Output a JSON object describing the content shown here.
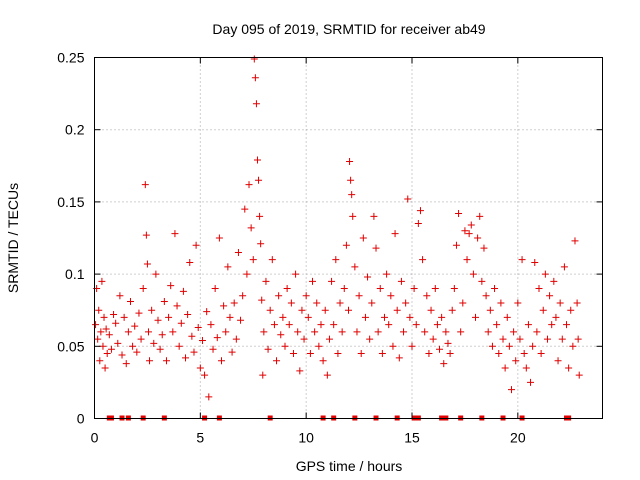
{
  "chart_data": {
    "type": "scatter",
    "title": "Day 095 of 2019, SRMTID for receiver ab49",
    "xlabel": "GPS time / hours",
    "ylabel": "SRMTID / TECUs",
    "xlim": [
      0,
      24
    ],
    "ylim": [
      0,
      0.25
    ],
    "xticks": [
      0,
      5,
      10,
      15,
      20
    ],
    "xtick_labels": [
      "0",
      "5",
      "10",
      "15",
      "20"
    ],
    "yticks": [
      0,
      0.05,
      0.1,
      0.15,
      0.2,
      0.25
    ],
    "ytick_labels": [
      "0",
      "0.05",
      "0.1",
      "0.15",
      "0.2",
      "0.25"
    ],
    "grid": true,
    "marker": "plus",
    "color": "#e00000",
    "series": [
      {
        "name": "SRMTID",
        "points": [
          [
            0.05,
            0.065
          ],
          [
            0.1,
            0.09
          ],
          [
            0.15,
            0.055
          ],
          [
            0.2,
            0.075
          ],
          [
            0.25,
            0.04
          ],
          [
            0.3,
            0.06
          ],
          [
            0.35,
            0.095
          ],
          [
            0.4,
            0.05
          ],
          [
            0.45,
            0.07
          ],
          [
            0.5,
            0.035
          ],
          [
            0.55,
            0.062
          ],
          [
            0.6,
            0.045
          ],
          [
            0.7,
            0.058
          ],
          [
            0.8,
            0.048
          ],
          [
            0.9,
            0.072
          ],
          [
            1.0,
            0.066
          ],
          [
            1.1,
            0.052
          ],
          [
            1.2,
            0.085
          ],
          [
            1.3,
            0.044
          ],
          [
            1.4,
            0.07
          ],
          [
            1.5,
            0.038
          ],
          [
            1.6,
            0.06
          ],
          [
            1.7,
            0.081
          ],
          [
            1.8,
            0.05
          ],
          [
            1.9,
            0.064
          ],
          [
            2.0,
            0.046
          ],
          [
            2.1,
            0.073
          ],
          [
            2.2,
            0.055
          ],
          [
            2.3,
            0.09
          ],
          [
            2.4,
            0.162
          ],
          [
            2.45,
            0.127
          ],
          [
            2.5,
            0.107
          ],
          [
            2.55,
            0.06
          ],
          [
            2.6,
            0.04
          ],
          [
            2.7,
            0.075
          ],
          [
            2.8,
            0.052
          ],
          [
            2.9,
            0.1
          ],
          [
            3.0,
            0.068
          ],
          [
            3.1,
            0.048
          ],
          [
            3.2,
            0.058
          ],
          [
            3.3,
            0.081
          ],
          [
            3.4,
            0.04
          ],
          [
            3.5,
            0.07
          ],
          [
            3.6,
            0.092
          ],
          [
            3.7,
            0.06
          ],
          [
            3.8,
            0.128
          ],
          [
            3.9,
            0.078
          ],
          [
            4.0,
            0.05
          ],
          [
            4.1,
            0.066
          ],
          [
            4.2,
            0.088
          ],
          [
            4.3,
            0.042
          ],
          [
            4.4,
            0.072
          ],
          [
            4.5,
            0.108
          ],
          [
            4.6,
            0.057
          ],
          [
            4.7,
            0.046
          ],
          [
            4.8,
            0.12
          ],
          [
            4.9,
            0.063
          ],
          [
            5.0,
            0.035
          ],
          [
            5.1,
            0.054
          ],
          [
            5.2,
            0.03
          ],
          [
            5.3,
            0.074
          ],
          [
            5.4,
            0.015
          ],
          [
            5.5,
            0.065
          ],
          [
            5.6,
            0.048
          ],
          [
            5.7,
            0.09
          ],
          [
            5.8,
            0.056
          ],
          [
            5.9,
            0.125
          ],
          [
            6.0,
            0.04
          ],
          [
            6.1,
            0.078
          ],
          [
            6.2,
            0.06
          ],
          [
            6.3,
            0.105
          ],
          [
            6.4,
            0.07
          ],
          [
            6.5,
            0.046
          ],
          [
            6.6,
            0.08
          ],
          [
            6.7,
            0.055
          ],
          [
            6.8,
            0.115
          ],
          [
            6.9,
            0.068
          ],
          [
            7.0,
            0.085
          ],
          [
            7.1,
            0.145
          ],
          [
            7.2,
            0.1
          ],
          [
            7.3,
            0.162
          ],
          [
            7.4,
            0.132
          ],
          [
            7.5,
            0.11
          ],
          [
            7.55,
            0.249
          ],
          [
            7.6,
            0.236
          ],
          [
            7.65,
            0.218
          ],
          [
            7.7,
            0.179
          ],
          [
            7.75,
            0.165
          ],
          [
            7.8,
            0.14
          ],
          [
            7.85,
            0.121
          ],
          [
            7.9,
            0.082
          ],
          [
            7.95,
            0.03
          ],
          [
            8.0,
            0.06
          ],
          [
            8.1,
            0.095
          ],
          [
            8.2,
            0.048
          ],
          [
            8.3,
            0.075
          ],
          [
            8.4,
            0.11
          ],
          [
            8.5,
            0.065
          ],
          [
            8.6,
            0.04
          ],
          [
            8.7,
            0.085
          ],
          [
            8.8,
            0.058
          ],
          [
            8.9,
            0.07
          ],
          [
            9.0,
            0.05
          ],
          [
            9.1,
            0.09
          ],
          [
            9.2,
            0.065
          ],
          [
            9.3,
            0.08
          ],
          [
            9.4,
            0.045
          ],
          [
            9.5,
            0.1
          ],
          [
            9.6,
            0.06
          ],
          [
            9.7,
            0.033
          ],
          [
            9.8,
            0.075
          ],
          [
            9.9,
            0.055
          ],
          [
            10.0,
            0.085
          ],
          [
            10.1,
            0.07
          ],
          [
            10.2,
            0.045
          ],
          [
            10.3,
            0.095
          ],
          [
            10.4,
            0.06
          ],
          [
            10.5,
            0.08
          ],
          [
            10.6,
            0.05
          ],
          [
            10.7,
            0.065
          ],
          [
            10.8,
            0.04
          ],
          [
            10.9,
            0.075
          ],
          [
            11.0,
            0.03
          ],
          [
            11.1,
            0.055
          ],
          [
            11.2,
            0.095
          ],
          [
            11.3,
            0.065
          ],
          [
            11.4,
            0.11
          ],
          [
            11.5,
            0.045
          ],
          [
            11.6,
            0.08
          ],
          [
            11.7,
            0.06
          ],
          [
            11.8,
            0.09
          ],
          [
            11.9,
            0.12
          ],
          [
            12.0,
            0.075
          ],
          [
            12.05,
            0.178
          ],
          [
            12.1,
            0.165
          ],
          [
            12.15,
            0.155
          ],
          [
            12.2,
            0.14
          ],
          [
            12.3,
            0.105
          ],
          [
            12.4,
            0.06
          ],
          [
            12.5,
            0.085
          ],
          [
            12.6,
            0.045
          ],
          [
            12.7,
            0.125
          ],
          [
            12.8,
            0.07
          ],
          [
            12.9,
            0.098
          ],
          [
            13.0,
            0.055
          ],
          [
            13.1,
            0.08
          ],
          [
            13.2,
            0.14
          ],
          [
            13.3,
            0.118
          ],
          [
            13.4,
            0.06
          ],
          [
            13.5,
            0.09
          ],
          [
            13.6,
            0.045
          ],
          [
            13.7,
            0.07
          ],
          [
            13.8,
            0.1
          ],
          [
            13.9,
            0.065
          ],
          [
            14.0,
            0.085
          ],
          [
            14.1,
            0.05
          ],
          [
            14.2,
            0.128
          ],
          [
            14.3,
            0.075
          ],
          [
            14.4,
            0.042
          ],
          [
            14.5,
            0.095
          ],
          [
            14.6,
            0.06
          ],
          [
            14.7,
            0.08
          ],
          [
            14.8,
            0.152
          ],
          [
            14.9,
            0.07
          ],
          [
            15.0,
            0.05
          ],
          [
            15.1,
            0.09
          ],
          [
            15.2,
            0.065
          ],
          [
            15.3,
            0.135
          ],
          [
            15.4,
            0.144
          ],
          [
            15.5,
            0.11
          ],
          [
            15.6,
            0.06
          ],
          [
            15.7,
            0.085
          ],
          [
            15.8,
            0.045
          ],
          [
            15.9,
            0.075
          ],
          [
            16.0,
            0.055
          ],
          [
            16.1,
            0.09
          ],
          [
            16.2,
            0.065
          ],
          [
            16.3,
            0.048
          ],
          [
            16.4,
            0.07
          ],
          [
            16.5,
            0.038
          ],
          [
            16.6,
            0.06
          ],
          [
            16.7,
            0.052
          ],
          [
            16.8,
            0.045
          ],
          [
            16.9,
            0.075
          ],
          [
            17.0,
            0.09
          ],
          [
            17.1,
            0.12
          ],
          [
            17.2,
            0.142
          ],
          [
            17.3,
            0.06
          ],
          [
            17.4,
            0.08
          ],
          [
            17.5,
            0.13
          ],
          [
            17.6,
            0.11
          ],
          [
            17.7,
            0.128
          ],
          [
            17.8,
            0.134
          ],
          [
            17.9,
            0.1
          ],
          [
            18.0,
            0.07
          ],
          [
            18.1,
            0.125
          ],
          [
            18.2,
            0.14
          ],
          [
            18.3,
            0.095
          ],
          [
            18.4,
            0.118
          ],
          [
            18.5,
            0.085
          ],
          [
            18.6,
            0.06
          ],
          [
            18.7,
            0.075
          ],
          [
            18.8,
            0.05
          ],
          [
            18.9,
            0.09
          ],
          [
            19.0,
            0.065
          ],
          [
            19.1,
            0.045
          ],
          [
            19.2,
            0.08
          ],
          [
            19.3,
            0.055
          ],
          [
            19.4,
            0.035
          ],
          [
            19.5,
            0.07
          ],
          [
            19.6,
            0.05
          ],
          [
            19.7,
            0.02
          ],
          [
            19.8,
            0.06
          ],
          [
            19.9,
            0.04
          ],
          [
            20.0,
            0.08
          ],
          [
            20.1,
            0.055
          ],
          [
            20.2,
            0.11
          ],
          [
            20.3,
            0.045
          ],
          [
            20.4,
            0.035
          ],
          [
            20.5,
            0.065
          ],
          [
            20.6,
            0.025
          ],
          [
            20.7,
            0.05
          ],
          [
            20.8,
            0.108
          ],
          [
            20.9,
            0.06
          ],
          [
            21.0,
            0.09
          ],
          [
            21.1,
            0.045
          ],
          [
            21.2,
            0.075
          ],
          [
            21.3,
            0.1
          ],
          [
            21.4,
            0.055
          ],
          [
            21.5,
            0.085
          ],
          [
            21.6,
            0.065
          ],
          [
            21.7,
            0.095
          ],
          [
            21.8,
            0.07
          ],
          [
            21.9,
            0.04
          ],
          [
            22.0,
            0.08
          ],
          [
            22.1,
            0.055
          ],
          [
            22.2,
            0.105
          ],
          [
            22.3,
            0.065
          ],
          [
            22.4,
            0.035
          ],
          [
            22.5,
            0.075
          ],
          [
            22.6,
            0.05
          ],
          [
            22.7,
            0.123
          ],
          [
            22.8,
            0.08
          ],
          [
            22.85,
            0.055
          ],
          [
            22.9,
            0.03
          ]
        ]
      }
    ],
    "zero_markers_x": [
      0.7,
      0.8,
      1.3,
      1.6,
      2.3,
      3.3,
      5.2,
      5.9,
      8.3,
      10.8,
      11.3,
      12.3,
      13.3,
      14.3,
      15.1,
      15.3,
      16.4,
      16.6,
      17.3,
      18.3,
      19.3,
      20.2,
      22.3,
      22.4
    ]
  }
}
